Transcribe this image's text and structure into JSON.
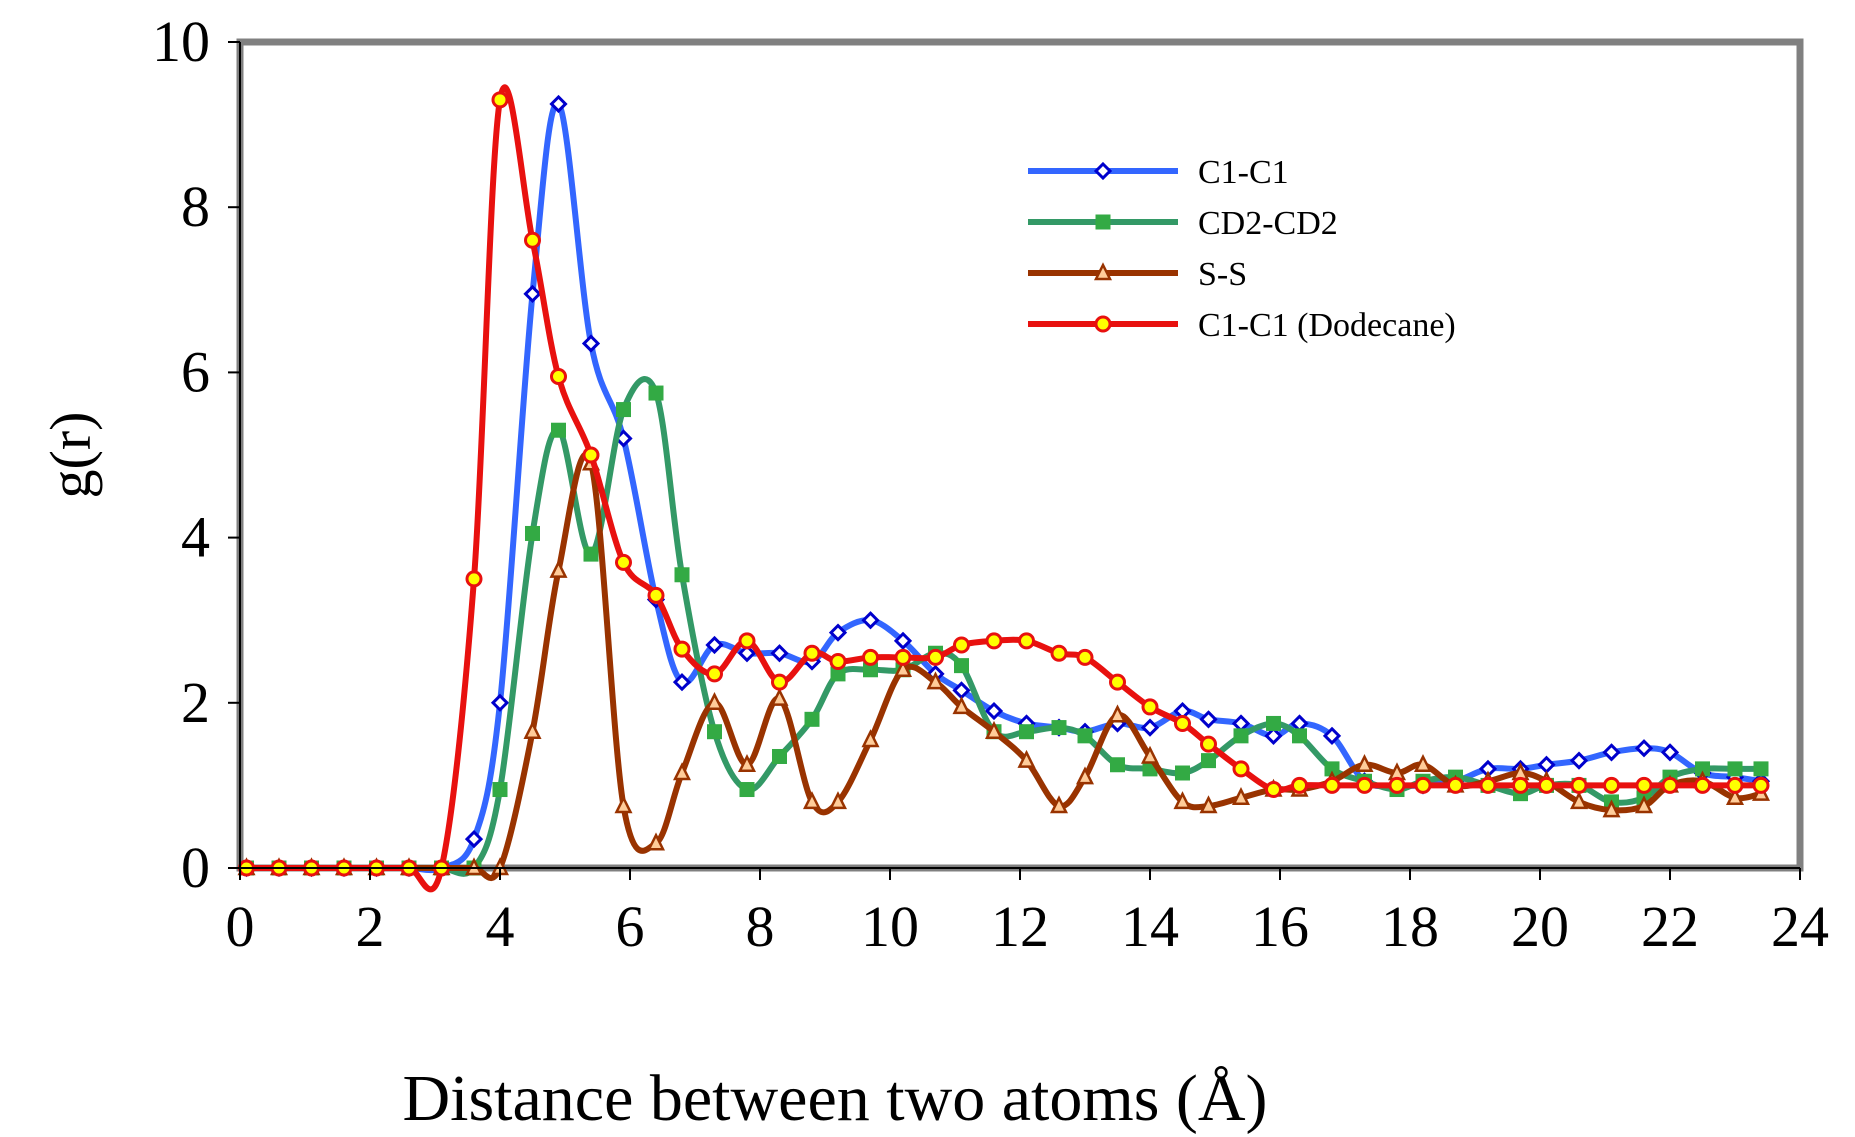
{
  "chart_data": {
    "type": "line",
    "title": "",
    "xlabel": "Distance between two atoms (Å)",
    "ylabel": "g(r)",
    "xlim": [
      0,
      24
    ],
    "ylim": [
      0,
      10
    ],
    "xticks": [
      "0",
      "2",
      "4",
      "6",
      "8",
      "10",
      "12",
      "14",
      "16",
      "18",
      "20",
      "22",
      "24"
    ],
    "yticks": [
      "0",
      "2",
      "4",
      "6",
      "8",
      "10"
    ],
    "grid": false,
    "legend_position": "top-right",
    "series": [
      {
        "name": "C1-C1",
        "color": "#3366ff",
        "marker": "diamond",
        "marker_fill": "#ffffff",
        "marker_stroke": "#0000cc",
        "x": [
          0.1,
          0.6,
          1.1,
          1.6,
          2.1,
          2.6,
          3.1,
          3.6,
          4.0,
          4.5,
          4.9,
          5.4,
          5.9,
          6.4,
          6.8,
          7.3,
          7.8,
          8.3,
          8.8,
          9.2,
          9.7,
          10.2,
          10.7,
          11.1,
          11.6,
          12.1,
          12.6,
          13.0,
          13.5,
          14.0,
          14.5,
          14.9,
          15.4,
          15.9,
          16.3,
          16.8,
          17.3,
          17.8,
          18.2,
          18.7,
          19.2,
          19.7,
          20.1,
          20.6,
          21.1,
          21.6,
          22.0,
          22.5,
          23.0,
          23.4
        ],
        "y": [
          0,
          0,
          0,
          0,
          0,
          0,
          0,
          0.35,
          2.0,
          6.95,
          9.25,
          6.35,
          5.2,
          3.25,
          2.25,
          2.7,
          2.6,
          2.6,
          2.5,
          2.85,
          3.0,
          2.75,
          2.35,
          2.15,
          1.9,
          1.75,
          1.7,
          1.65,
          1.75,
          1.7,
          1.9,
          1.8,
          1.75,
          1.6,
          1.75,
          1.6,
          1.05,
          1.0,
          1.0,
          1.05,
          1.2,
          1.2,
          1.25,
          1.3,
          1.4,
          1.45,
          1.4,
          1.15,
          1.1,
          1.05
        ]
      },
      {
        "name": "CD2-CD2",
        "color": "#339966",
        "marker": "square",
        "marker_fill": "#33aa44",
        "marker_stroke": "#33aa44",
        "x": [
          0.1,
          0.6,
          1.1,
          1.6,
          2.1,
          2.6,
          3.1,
          3.6,
          4.0,
          4.5,
          4.9,
          5.4,
          5.9,
          6.4,
          6.8,
          7.3,
          7.8,
          8.3,
          8.8,
          9.2,
          9.7,
          10.2,
          10.7,
          11.1,
          11.6,
          12.1,
          12.6,
          13.0,
          13.5,
          14.0,
          14.5,
          14.9,
          15.4,
          15.9,
          16.3,
          16.8,
          17.3,
          17.8,
          18.2,
          18.7,
          19.2,
          19.7,
          20.1,
          20.6,
          21.1,
          21.6,
          22.0,
          22.5,
          23.0,
          23.4
        ],
        "y": [
          0,
          0,
          0,
          0,
          0,
          0,
          0,
          0,
          0.95,
          4.05,
          5.3,
          3.8,
          5.55,
          5.75,
          3.55,
          1.65,
          0.95,
          1.35,
          1.8,
          2.35,
          2.4,
          2.4,
          2.6,
          2.45,
          1.65,
          1.65,
          1.7,
          1.6,
          1.25,
          1.2,
          1.15,
          1.3,
          1.6,
          1.75,
          1.6,
          1.2,
          1.05,
          0.95,
          1.05,
          1.1,
          1.0,
          0.9,
          1.0,
          1.0,
          0.8,
          0.85,
          1.1,
          1.2,
          1.2,
          1.2
        ]
      },
      {
        "name": "S-S",
        "color": "#993300",
        "marker": "triangle",
        "marker_fill": "#ffcc99",
        "marker_stroke": "#993300",
        "x": [
          0.1,
          0.6,
          1.1,
          1.6,
          2.1,
          2.6,
          3.1,
          3.6,
          4.0,
          4.5,
          4.9,
          5.4,
          5.9,
          6.4,
          6.8,
          7.3,
          7.8,
          8.3,
          8.8,
          9.2,
          9.7,
          10.2,
          10.7,
          11.1,
          11.6,
          12.1,
          12.6,
          13.0,
          13.5,
          14.0,
          14.5,
          14.9,
          15.4,
          15.9,
          16.3,
          16.8,
          17.3,
          17.8,
          18.2,
          18.7,
          19.2,
          19.7,
          20.1,
          20.6,
          21.1,
          21.6,
          22.0,
          22.5,
          23.0,
          23.4
        ],
        "y": [
          0,
          0,
          0,
          0,
          0,
          0,
          0,
          0,
          0,
          1.65,
          3.6,
          4.9,
          0.75,
          0.3,
          1.15,
          2.0,
          1.25,
          2.05,
          0.8,
          0.8,
          1.55,
          2.4,
          2.25,
          1.95,
          1.65,
          1.3,
          0.75,
          1.1,
          1.85,
          1.35,
          0.8,
          0.75,
          0.85,
          0.95,
          0.95,
          1.05,
          1.25,
          1.15,
          1.25,
          1.0,
          1.05,
          1.15,
          1.05,
          0.8,
          0.7,
          0.75,
          1.0,
          1.05,
          0.85,
          0.9
        ]
      },
      {
        "name": "C1-C1 (Dodecane)",
        "color": "#e8110f",
        "marker": "circle",
        "marker_fill": "#ffff00",
        "marker_stroke": "#e8110f",
        "x": [
          0.1,
          0.6,
          1.1,
          1.6,
          2.1,
          2.6,
          3.1,
          3.6,
          4.0,
          4.5,
          4.9,
          5.4,
          5.9,
          6.4,
          6.8,
          7.3,
          7.8,
          8.3,
          8.8,
          9.2,
          9.7,
          10.2,
          10.7,
          11.1,
          11.6,
          12.1,
          12.6,
          13.0,
          13.5,
          14.0,
          14.5,
          14.9,
          15.4,
          15.9,
          16.3,
          16.8,
          17.3,
          17.8,
          18.2,
          18.7,
          19.2,
          19.7,
          20.1,
          20.6,
          21.1,
          21.6,
          22.0,
          22.5,
          23.0,
          23.4
        ],
        "y": [
          0,
          0,
          0,
          0,
          0,
          0,
          0,
          3.5,
          9.3,
          7.6,
          5.95,
          5.0,
          3.7,
          3.3,
          2.65,
          2.35,
          2.75,
          2.25,
          2.6,
          2.5,
          2.55,
          2.55,
          2.55,
          2.7,
          2.75,
          2.75,
          2.6,
          2.55,
          2.25,
          1.95,
          1.75,
          1.5,
          1.2,
          0.95,
          1.0,
          1.0,
          1.0,
          1.0,
          1.0,
          1.0,
          1.0,
          1.0,
          1.0,
          1.0,
          1.0,
          1.0,
          1.0,
          1.0,
          1.0,
          1.0
        ]
      }
    ]
  }
}
